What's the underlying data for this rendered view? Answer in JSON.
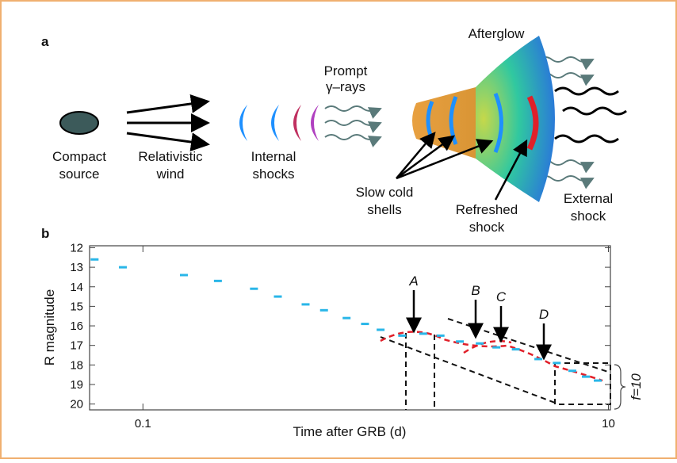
{
  "panel_a": {
    "label": "a",
    "compact_source": [
      "Compact",
      "source"
    ],
    "relativistic_wind": [
      "Relativistic",
      "wind"
    ],
    "internal_shocks": [
      "Internal",
      "shocks"
    ],
    "prompt_gamma": [
      "Prompt",
      "γ–rays"
    ],
    "afterglow": "Afterglow",
    "slow_cold_shells": [
      "Slow cold",
      "shells"
    ],
    "refreshed_shock": [
      "Refreshed",
      "shock"
    ],
    "external_shock": [
      "External",
      "shock"
    ]
  },
  "chart_data": {
    "type": "scatter",
    "panel_label": "b",
    "x_label": "Time after GRB (d)",
    "y_label": "R magnitude",
    "xlim": [
      0.059,
      10.2
    ],
    "ylim": [
      20.3,
      11.9
    ],
    "log_x": true,
    "xticks": [
      0.1,
      10
    ],
    "yticks": [
      12,
      13,
      14,
      15,
      16,
      17,
      18,
      19,
      20
    ],
    "color": "#29b6e8",
    "x": [
      0.062,
      0.082,
      0.15,
      0.21,
      0.3,
      0.38,
      0.5,
      0.6,
      0.75,
      0.9,
      1.05,
      1.3,
      1.6,
      1.9,
      2.3,
      2.8,
      3.3,
      4,
      5,
      6,
      7,
      8,
      9
    ],
    "values": [
      12.6,
      13.0,
      13.4,
      13.7,
      14.1,
      14.5,
      14.9,
      15.2,
      15.6,
      15.9,
      16.2,
      16.5,
      16.4,
      16.5,
      16.8,
      16.9,
      17.1,
      17.2,
      17.7,
      17.9,
      18.3,
      18.6,
      18.8
    ],
    "annotations": [
      "A",
      "B",
      "C",
      "D",
      "f=10"
    ]
  }
}
